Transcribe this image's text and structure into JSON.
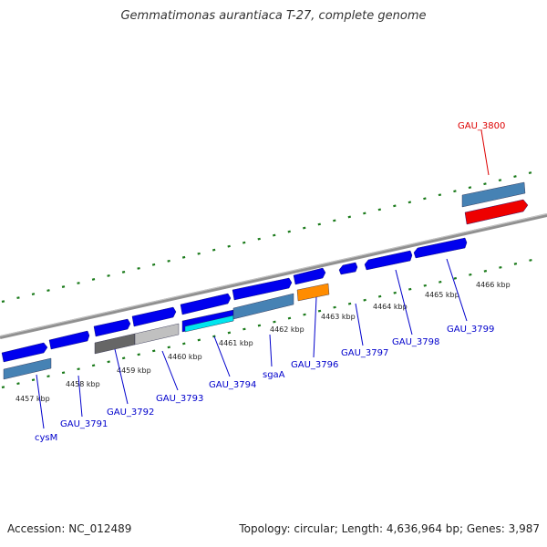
{
  "title": "Gemmatimonas aurantiaca T-27, complete genome",
  "footer": {
    "accession": "Accession: NC_012489",
    "summary": "Topology: circular; Length: 4,636,964 bp; Genes: 3,987"
  },
  "colors": {
    "backbone": "#808080",
    "tick": "#1a7a1a",
    "gene_blue": "#0000ee",
    "gene_steel": "#4682b4",
    "gene_red": "#ee0000",
    "gene_orange": "#ff8c00",
    "gene_gray_dark": "#555555",
    "gene_gray_light": "#c0c0c0",
    "gene_cyan": "#00e5ee",
    "label_blue": "#0000cc",
    "label_red": "#dd0000"
  },
  "kbp_labels": [
    "4457 kbp",
    "4458 kbp",
    "4459 kbp",
    "4460 kbp",
    "4461 kbp",
    "4462 kbp",
    "4463 kbp",
    "4464 kbp",
    "4465 kbp",
    "4466 kbp"
  ],
  "gene_labels": {
    "cysM": "cysM",
    "GAU_3791": "GAU_3791",
    "GAU_3792": "GAU_3792",
    "GAU_3793": "GAU_3793",
    "GAU_3794": "GAU_3794",
    "sgaA": "sgaA",
    "GAU_3796": "GAU_3796",
    "GAU_3797": "GAU_3797",
    "GAU_3798": "GAU_3798",
    "GAU_3799": "GAU_3799",
    "GAU_3800": "GAU_3800"
  }
}
